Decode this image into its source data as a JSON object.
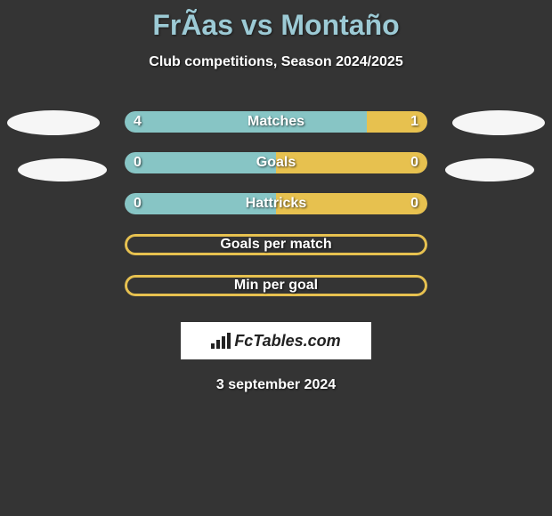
{
  "title": "FrÃ­as vs Montaño",
  "subtitle": "Club competitions, Season 2024/2025",
  "colors": {
    "accent_teal": "#87c5c5",
    "accent_yellow": "#e7c14f",
    "track_bg": "#6a6a6a",
    "ellipse": "#f6f6f6",
    "page_bg": "#343434",
    "text": "#ffffff",
    "title_text": "#9ccad5"
  },
  "stats": [
    {
      "label": "Matches",
      "left_value": "4",
      "right_value": "1",
      "left_pct": 80,
      "right_pct": 20,
      "left_color": "#87c5c5",
      "right_color": "#e7c14f",
      "show_values": true,
      "outline": false
    },
    {
      "label": "Goals",
      "left_value": "0",
      "right_value": "0",
      "left_pct": 50,
      "right_pct": 50,
      "left_color": "#87c5c5",
      "right_color": "#e7c14f",
      "show_values": true,
      "outline": false
    },
    {
      "label": "Hattricks",
      "left_value": "0",
      "right_value": "0",
      "left_pct": 50,
      "right_pct": 50,
      "left_color": "#87c5c5",
      "right_color": "#e7c14f",
      "show_values": true,
      "outline": false
    },
    {
      "label": "Goals per match",
      "left_value": "",
      "right_value": "",
      "left_pct": 0,
      "right_pct": 0,
      "left_color": "#e7c14f",
      "right_color": "#e7c14f",
      "show_values": false,
      "outline": true,
      "outline_color": "#e7c14f"
    },
    {
      "label": "Min per goal",
      "left_value": "",
      "right_value": "",
      "left_pct": 0,
      "right_pct": 0,
      "left_color": "#e7c14f",
      "right_color": "#e7c14f",
      "show_values": false,
      "outline": true,
      "outline_color": "#e7c14f"
    }
  ],
  "logo_text": "FcTables.com",
  "date": "3 september 2024"
}
